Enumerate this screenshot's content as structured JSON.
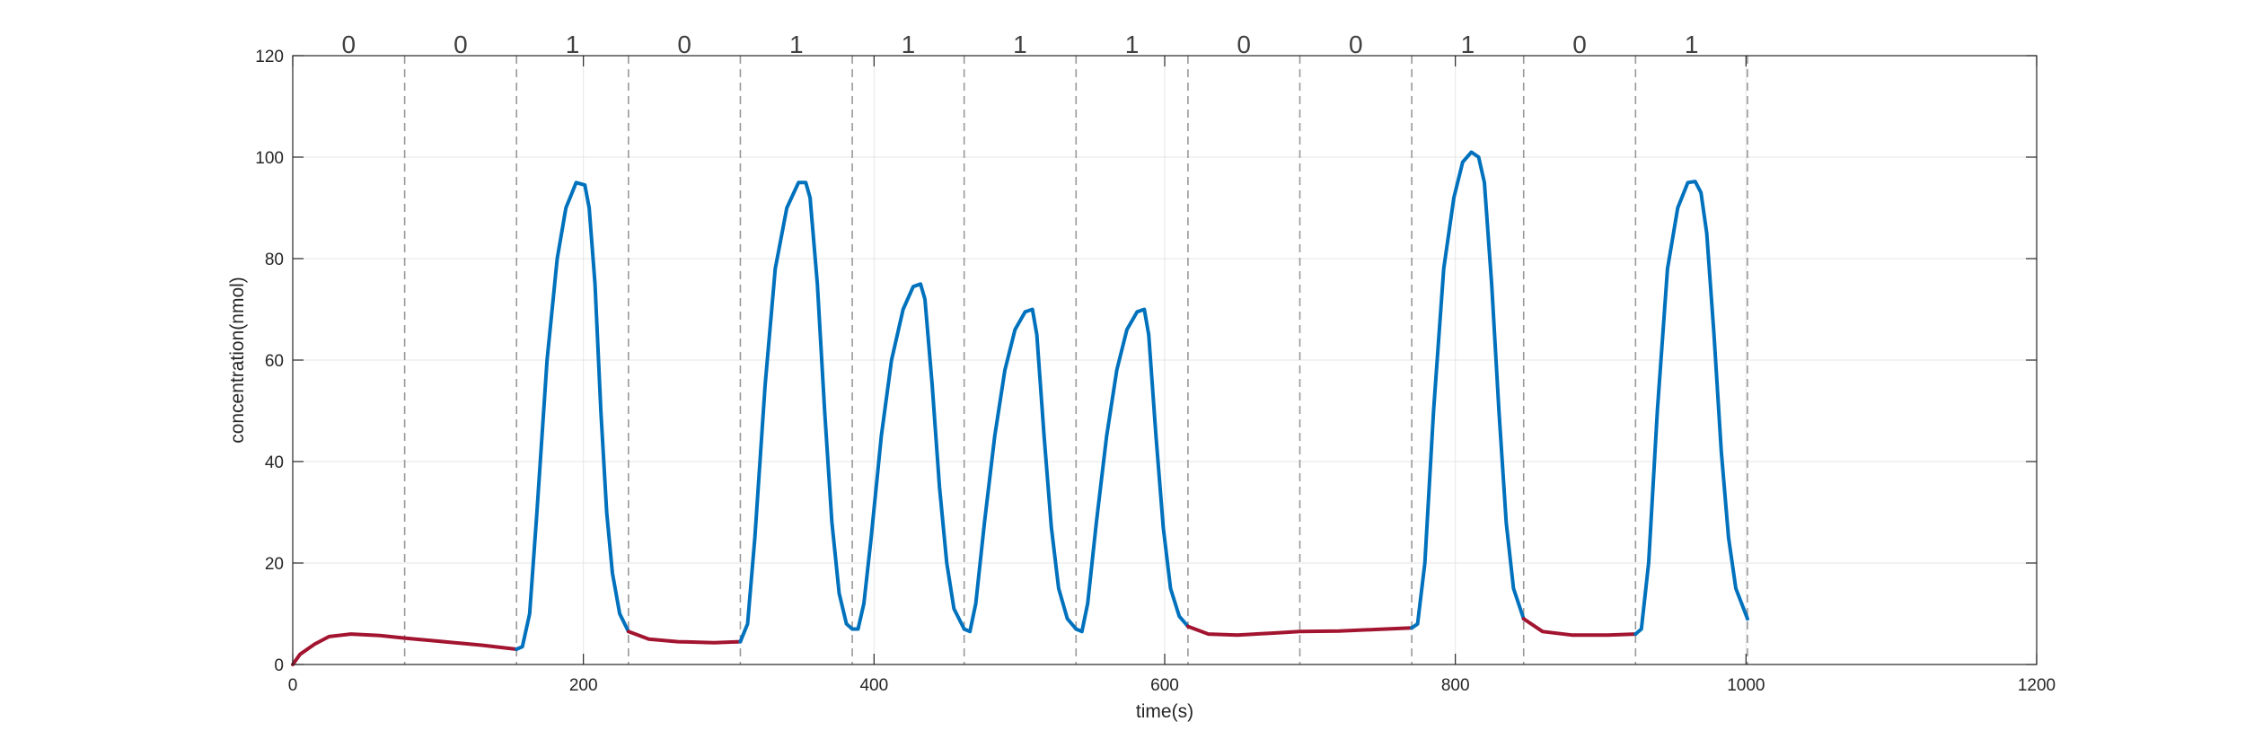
{
  "chart_data": {
    "type": "line",
    "title": "",
    "xlabel": "time(s)",
    "ylabel": "concentration(nmol)",
    "xlim": [
      0,
      1200
    ],
    "ylim": [
      0,
      120
    ],
    "xticks": [
      0,
      200,
      400,
      600,
      800,
      1000,
      1200
    ],
    "yticks": [
      0,
      20,
      40,
      60,
      80,
      100,
      120
    ],
    "grid": true,
    "colors": {
      "bit0": "#A2142F",
      "bit1": "#0072BD",
      "divider": "#999999",
      "grid": "#e6e6e6",
      "axis": "#262626"
    },
    "symbol_duration": 77,
    "boundaries": [
      0,
      77,
      154,
      231,
      308,
      385,
      462,
      539,
      616,
      693,
      770,
      847,
      924,
      1001
    ],
    "bits": [
      "0",
      "0",
      "1",
      "0",
      "1",
      "1",
      "1",
      "1",
      "0",
      "0",
      "1",
      "0",
      "1"
    ],
    "segments": [
      {
        "bit": "0",
        "points": [
          [
            0,
            0
          ],
          [
            5,
            2
          ],
          [
            15,
            4
          ],
          [
            25,
            5.5
          ],
          [
            40,
            6
          ],
          [
            60,
            5.7
          ],
          [
            77,
            5.2
          ],
          [
            100,
            4.6
          ],
          [
            130,
            3.8
          ],
          [
            154,
            3
          ]
        ]
      },
      {
        "bit": "1",
        "points": [
          [
            154,
            3
          ],
          [
            158,
            3.5
          ],
          [
            163,
            10
          ],
          [
            168,
            30
          ],
          [
            175,
            60
          ],
          [
            182,
            80
          ],
          [
            188,
            90
          ],
          [
            195,
            95
          ],
          [
            201,
            94.5
          ],
          [
            204,
            90
          ],
          [
            208,
            75
          ],
          [
            212,
            50
          ],
          [
            216,
            30
          ],
          [
            220,
            18
          ],
          [
            225,
            10
          ],
          [
            231,
            6.5
          ]
        ]
      },
      {
        "bit": "0",
        "points": [
          [
            231,
            6.5
          ],
          [
            245,
            5
          ],
          [
            265,
            4.5
          ],
          [
            290,
            4.3
          ],
          [
            308,
            4.5
          ]
        ]
      },
      {
        "bit": "1",
        "points": [
          [
            308,
            4.5
          ],
          [
            313,
            8
          ],
          [
            318,
            25
          ],
          [
            325,
            55
          ],
          [
            332,
            78
          ],
          [
            340,
            90
          ],
          [
            348,
            95
          ],
          [
            353,
            95
          ],
          [
            356,
            92
          ],
          [
            361,
            75
          ],
          [
            366,
            50
          ],
          [
            371,
            28
          ],
          [
            376,
            14
          ],
          [
            381,
            8
          ],
          [
            385,
            7
          ]
        ]
      },
      {
        "bit": "1",
        "points": [
          [
            385,
            7
          ],
          [
            389,
            7
          ],
          [
            393,
            12
          ],
          [
            398,
            25
          ],
          [
            405,
            45
          ],
          [
            412,
            60
          ],
          [
            420,
            70
          ],
          [
            427,
            74.5
          ],
          [
            432,
            75
          ],
          [
            435,
            72
          ],
          [
            440,
            55
          ],
          [
            445,
            35
          ],
          [
            450,
            20
          ],
          [
            455,
            11
          ],
          [
            462,
            7
          ]
        ]
      },
      {
        "bit": "1",
        "points": [
          [
            462,
            7
          ],
          [
            466,
            6.5
          ],
          [
            470,
            12
          ],
          [
            476,
            28
          ],
          [
            483,
            45
          ],
          [
            490,
            58
          ],
          [
            497,
            66
          ],
          [
            504,
            69.5
          ],
          [
            509,
            70
          ],
          [
            512,
            65
          ],
          [
            517,
            45
          ],
          [
            522,
            27
          ],
          [
            527,
            15
          ],
          [
            533,
            9
          ],
          [
            539,
            7
          ]
        ]
      },
      {
        "bit": "1",
        "points": [
          [
            539,
            7
          ],
          [
            543,
            6.5
          ],
          [
            547,
            12
          ],
          [
            553,
            28
          ],
          [
            560,
            45
          ],
          [
            567,
            58
          ],
          [
            574,
            66
          ],
          [
            581,
            69.5
          ],
          [
            586,
            70
          ],
          [
            589,
            65
          ],
          [
            594,
            45
          ],
          [
            599,
            27
          ],
          [
            604,
            15
          ],
          [
            610,
            9.5
          ],
          [
            616,
            7.5
          ]
        ]
      },
      {
        "bit": "0",
        "points": [
          [
            616,
            7.5
          ],
          [
            630,
            6
          ],
          [
            650,
            5.8
          ],
          [
            675,
            6.2
          ],
          [
            693,
            6.5
          ],
          [
            720,
            6.6
          ],
          [
            745,
            6.9
          ],
          [
            770,
            7.2
          ]
        ]
      },
      {
        "bit": "1",
        "points": [
          [
            770,
            7.2
          ],
          [
            774,
            8
          ],
          [
            779,
            20
          ],
          [
            785,
            50
          ],
          [
            792,
            78
          ],
          [
            799,
            92
          ],
          [
            805,
            99
          ],
          [
            811,
            101
          ],
          [
            816,
            100
          ],
          [
            820,
            95
          ],
          [
            825,
            75
          ],
          [
            830,
            50
          ],
          [
            835,
            28
          ],
          [
            840,
            15
          ],
          [
            847,
            9
          ]
        ]
      },
      {
        "bit": "0",
        "points": [
          [
            847,
            9
          ],
          [
            860,
            6.5
          ],
          [
            880,
            5.8
          ],
          [
            905,
            5.8
          ],
          [
            924,
            6
          ]
        ]
      },
      {
        "bit": "1",
        "points": [
          [
            924,
            6
          ],
          [
            928,
            7
          ],
          [
            933,
            20
          ],
          [
            939,
            50
          ],
          [
            946,
            78
          ],
          [
            953,
            90
          ],
          [
            960,
            95
          ],
          [
            965,
            95.2
          ],
          [
            969,
            93
          ],
          [
            973,
            85
          ],
          [
            978,
            65
          ],
          [
            983,
            42
          ],
          [
            988,
            25
          ],
          [
            993,
            15
          ],
          [
            1001,
            9
          ]
        ]
      }
    ]
  }
}
